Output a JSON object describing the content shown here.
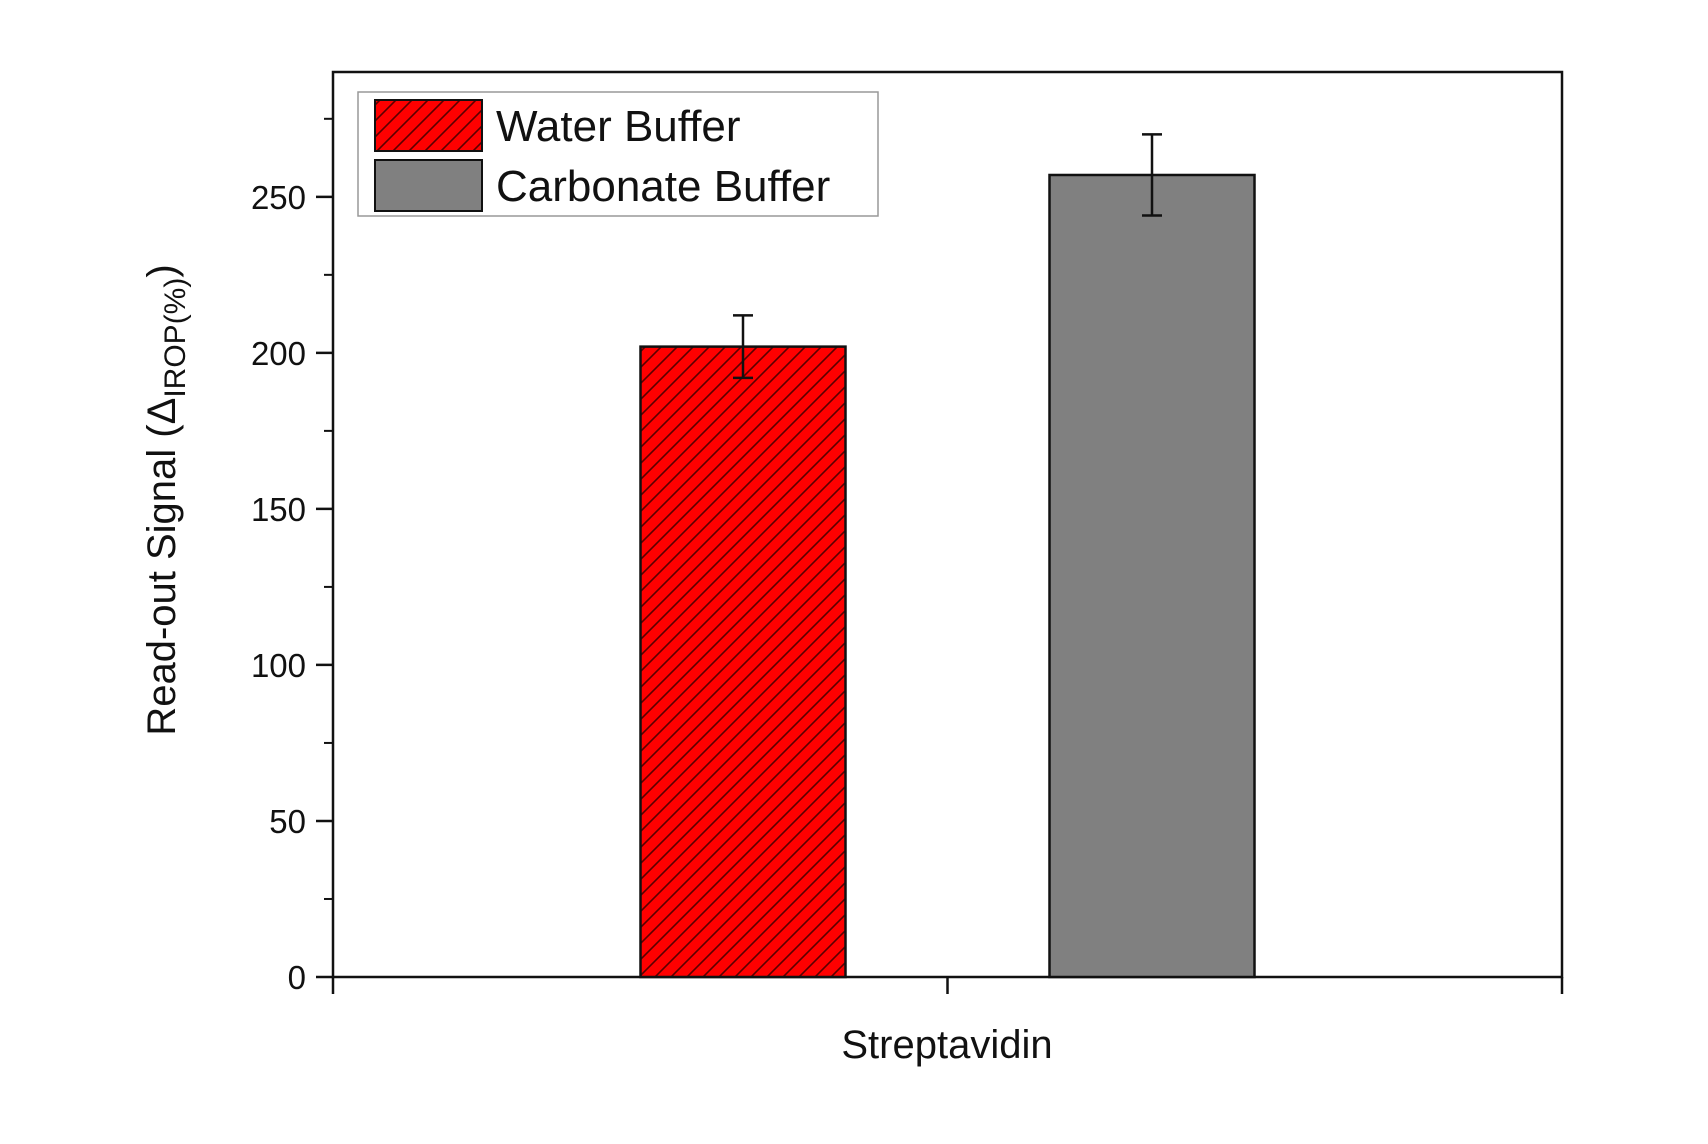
{
  "chart_data": {
    "type": "bar",
    "categories": [
      "Streptavidin"
    ],
    "series": [
      {
        "name": "Water Buffer",
        "values": [
          202
        ],
        "errors": [
          10
        ],
        "color": "#ff0000",
        "pattern": "diagonal-hatch"
      },
      {
        "name": "Carbonate Buffer",
        "values": [
          257
        ],
        "errors": [
          13
        ],
        "color": "#808080",
        "pattern": "solid"
      }
    ],
    "title": "",
    "xlabel": "Streptavidin",
    "ylabel_main": "Read-out Signal (",
    "ylabel_symbol": "Δ",
    "ylabel_sub": "IROP(%)",
    "ylabel_close": ")",
    "ylim": [
      0,
      290
    ],
    "yticks": [
      0,
      50,
      100,
      150,
      200,
      250
    ],
    "yticks_labels": [
      "0",
      "50",
      "100",
      "150",
      "200",
      "250"
    ],
    "legend_position": "top-left",
    "grid": false
  }
}
